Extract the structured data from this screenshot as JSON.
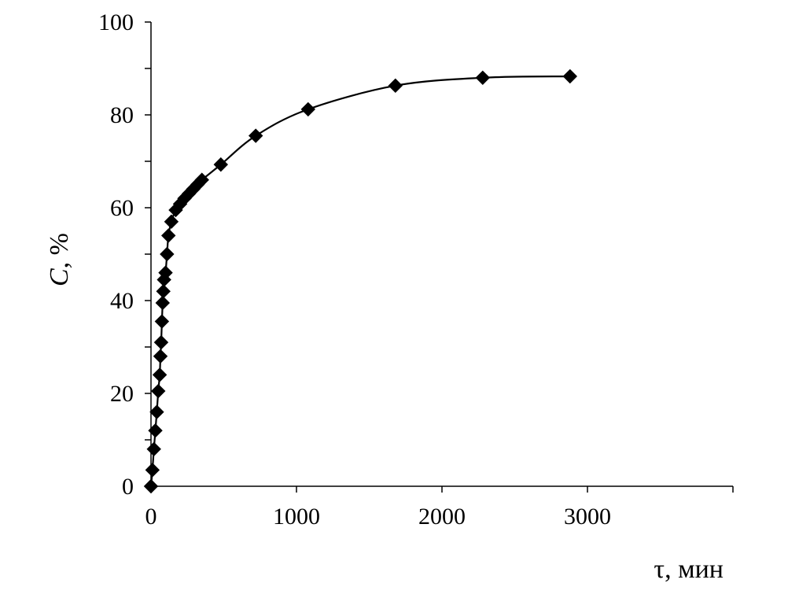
{
  "chart_data": {
    "type": "scatter",
    "title": "",
    "xlabel": "τ, мин",
    "ylabel_italic": "C",
    "ylabel_rest": ", %",
    "xlim": [
      0,
      4000
    ],
    "ylim": [
      0,
      100
    ],
    "x_ticks": [
      0,
      1000,
      2000,
      3000
    ],
    "x_minor_ticks": [
      0,
      1000,
      2000,
      3000,
      4000
    ],
    "y_ticks": [
      0,
      20,
      40,
      60,
      80,
      100
    ],
    "y_minor_ticks": [
      0,
      10,
      20,
      30,
      40,
      50,
      60,
      70,
      80,
      90,
      100
    ],
    "grid": false,
    "legend": "none",
    "colors": {
      "marker": "#000000",
      "line": "#000000",
      "axes": "#000000"
    },
    "series": [
      {
        "marker": "diamond",
        "smooth_line": true,
        "points": [
          [
            0,
            0
          ],
          [
            10,
            3.5
          ],
          [
            20,
            8
          ],
          [
            30,
            12
          ],
          [
            40,
            16
          ],
          [
            50,
            20.5
          ],
          [
            60,
            24
          ],
          [
            65,
            28
          ],
          [
            70,
            31
          ],
          [
            75,
            35.5
          ],
          [
            80,
            39.5
          ],
          [
            85,
            42
          ],
          [
            90,
            44.5
          ],
          [
            100,
            46
          ],
          [
            110,
            50
          ],
          [
            120,
            54
          ],
          [
            140,
            57
          ],
          [
            170,
            59.5
          ],
          [
            200,
            60.8
          ],
          [
            230,
            62
          ],
          [
            260,
            63
          ],
          [
            290,
            64
          ],
          [
            320,
            65
          ],
          [
            350,
            66
          ],
          [
            480,
            69.3
          ],
          [
            720,
            75.5
          ],
          [
            1080,
            81.2
          ],
          [
            1680,
            86.3
          ],
          [
            2280,
            88
          ],
          [
            2880,
            88.3
          ]
        ]
      }
    ]
  }
}
